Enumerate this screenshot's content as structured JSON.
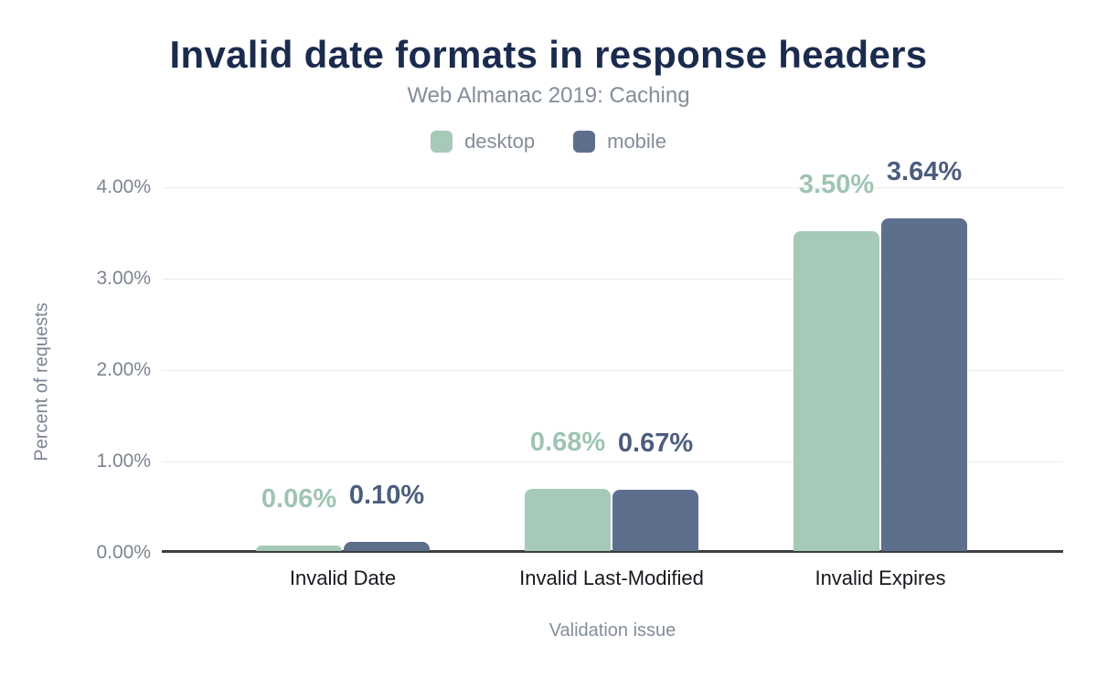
{
  "chart_data": {
    "type": "bar",
    "title": "Invalid date formats in response headers",
    "subtitle": "Web Almanac 2019: Caching",
    "categories": [
      "Invalid Date",
      "Invalid Last-Modified",
      "Invalid Expires"
    ],
    "series": [
      {
        "name": "desktop",
        "color": "#a7c9b7",
        "label_color": "#9fc4b2",
        "values": [
          0.06,
          0.68,
          3.5
        ],
        "labels": [
          "0.06%",
          "0.68%",
          "3.50%"
        ]
      },
      {
        "name": "mobile",
        "color": "#5d6f8c",
        "label_color": "#4c5e7d",
        "values": [
          0.1,
          0.67,
          3.64
        ],
        "labels": [
          "0.10%",
          "0.67%",
          "3.64%"
        ]
      }
    ],
    "xlabel": "Validation issue",
    "ylabel": "Percent of requests",
    "ylim": [
      0,
      4
    ],
    "yticks": [
      "0.00%",
      "1.00%",
      "2.00%",
      "3.00%",
      "4.00%"
    ],
    "grid": "horizontal",
    "legend_position": "top"
  },
  "colors": {
    "background": "#ffffff",
    "title": "#1b2b4e",
    "muted_text": "#848d99",
    "axis_text": "#7b8490",
    "category_text": "#16181d",
    "gridline": "#ebebeb",
    "axis_line": "#3d4043",
    "desktop": "#a7c9b7",
    "mobile": "#5d6f8c"
  }
}
